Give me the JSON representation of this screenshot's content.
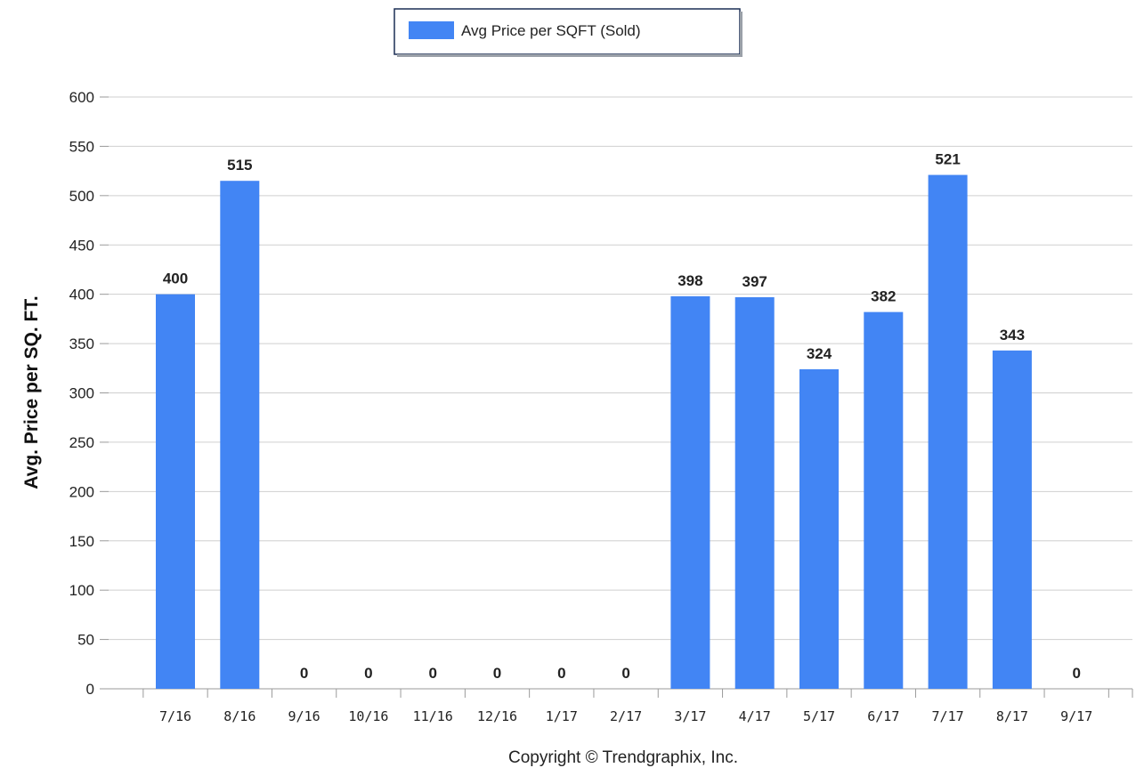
{
  "chart_data": {
    "type": "bar",
    "categories": [
      "7/16",
      "8/16",
      "9/16",
      "10/16",
      "11/16",
      "12/16",
      "1/17",
      "2/17",
      "3/17",
      "4/17",
      "5/17",
      "6/17",
      "7/17",
      "8/17",
      "9/17"
    ],
    "series": [
      {
        "name": "Avg Price per SQFT (Sold)",
        "values": [
          400,
          515,
          0,
          0,
          0,
          0,
          0,
          0,
          398,
          397,
          324,
          382,
          521,
          343,
          0
        ],
        "color": "#4285f4"
      }
    ],
    "data_labels": [
      "400",
      "515",
      "0",
      "0",
      "0",
      "0",
      "0",
      "0",
      "398",
      "397",
      "324",
      "382",
      "521",
      "343",
      "0"
    ],
    "title": "",
    "xlabel": "",
    "ylabel": "Avg. Price per SQ. FT.",
    "ylim": [
      0,
      600
    ],
    "yticks": [
      0,
      50,
      100,
      150,
      200,
      250,
      300,
      350,
      400,
      450,
      500,
      550,
      600
    ],
    "grid": true,
    "legend_position": "top-center"
  },
  "footer": {
    "copyright": "Copyright © Trendgraphix, Inc."
  }
}
